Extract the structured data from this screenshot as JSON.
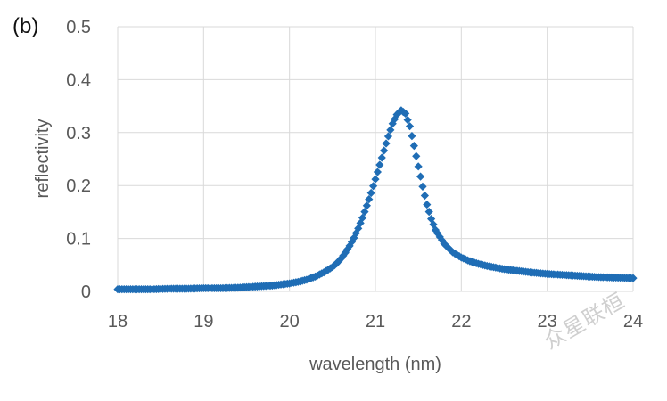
{
  "panel_label": "(b)",
  "watermark": "众星联桓",
  "colors": {
    "marker": "#1f6db5",
    "grid": "#d9d9d9",
    "text": "#595959"
  },
  "chart_data": {
    "type": "scatter",
    "title": "",
    "xlabel": "wavelength (nm)",
    "ylabel": "reflectivity",
    "xlim": [
      18,
      24
    ],
    "ylim": [
      0,
      0.5
    ],
    "x_ticks": [
      18,
      19,
      20,
      21,
      22,
      23,
      24
    ],
    "y_ticks": [
      0,
      0.1,
      0.2,
      0.3,
      0.4,
      0.5
    ],
    "x_tick_labels": [
      "18",
      "19",
      "20",
      "21",
      "22",
      "23",
      "24"
    ],
    "y_tick_labels": [
      "0",
      "0.1",
      "0.2",
      "0.3",
      "0.4",
      "0.5"
    ],
    "grid": true,
    "marker": "diamond",
    "series": [
      {
        "name": "reflectivity",
        "x": [
          18.0,
          18.2,
          18.4,
          18.6,
          18.8,
          19.0,
          19.2,
          19.4,
          19.6,
          19.8,
          20.0,
          20.1,
          20.2,
          20.3,
          20.4,
          20.5,
          20.55,
          20.6,
          20.65,
          20.7,
          20.75,
          20.8,
          20.85,
          20.9,
          20.95,
          21.0,
          21.05,
          21.1,
          21.15,
          21.2,
          21.25,
          21.3,
          21.35,
          21.4,
          21.45,
          21.5,
          21.55,
          21.6,
          21.65,
          21.7,
          21.8,
          21.9,
          22.0,
          22.1,
          22.2,
          22.3,
          22.4,
          22.5,
          22.6,
          22.8,
          23.0,
          23.2,
          23.4,
          23.6,
          23.8,
          24.0
        ],
        "values": [
          0.004,
          0.004,
          0.004,
          0.005,
          0.005,
          0.006,
          0.006,
          0.007,
          0.009,
          0.011,
          0.015,
          0.018,
          0.022,
          0.028,
          0.036,
          0.046,
          0.053,
          0.062,
          0.073,
          0.086,
          0.101,
          0.119,
          0.139,
          0.162,
          0.186,
          0.212,
          0.239,
          0.266,
          0.293,
          0.317,
          0.334,
          0.342,
          0.336,
          0.312,
          0.275,
          0.236,
          0.198,
          0.164,
          0.137,
          0.116,
          0.09,
          0.074,
          0.064,
          0.057,
          0.052,
          0.048,
          0.045,
          0.042,
          0.04,
          0.036,
          0.033,
          0.031,
          0.029,
          0.027,
          0.026,
          0.025
        ]
      }
    ]
  }
}
